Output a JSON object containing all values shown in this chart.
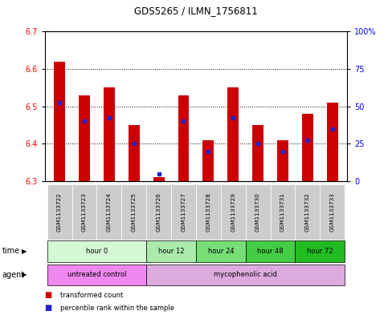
{
  "title": "GDS5265 / ILMN_1756811",
  "samples": [
    "GSM1133722",
    "GSM1133723",
    "GSM1133724",
    "GSM1133725",
    "GSM1133726",
    "GSM1133727",
    "GSM1133728",
    "GSM1133729",
    "GSM1133730",
    "GSM1133731",
    "GSM1133732",
    "GSM1133733"
  ],
  "bar_values": [
    6.62,
    6.53,
    6.55,
    6.45,
    6.31,
    6.53,
    6.41,
    6.55,
    6.45,
    6.41,
    6.48,
    6.51
  ],
  "bar_base": 6.3,
  "blue_dot_values": [
    6.51,
    6.46,
    6.47,
    6.4,
    6.32,
    6.46,
    6.38,
    6.47,
    6.4,
    6.38,
    6.41,
    6.44
  ],
  "bar_color": "#cc0000",
  "dot_color": "#2222cc",
  "ylim_left": [
    6.3,
    6.7
  ],
  "ylim_right": [
    0,
    100
  ],
  "yticks_left": [
    6.3,
    6.4,
    6.5,
    6.6,
    6.7
  ],
  "yticks_right": [
    0,
    25,
    50,
    75,
    100
  ],
  "ytick_labels_right": [
    "0",
    "25",
    "50",
    "75",
    "100%"
  ],
  "grid_lines": [
    6.4,
    6.5,
    6.6
  ],
  "time_groups": [
    {
      "label": "hour 0",
      "start": 0,
      "end": 3,
      "color": "#d4f7d4"
    },
    {
      "label": "hour 12",
      "start": 4,
      "end": 5,
      "color": "#aaeaaa"
    },
    {
      "label": "hour 24",
      "start": 6,
      "end": 7,
      "color": "#77dd77"
    },
    {
      "label": "hour 48",
      "start": 8,
      "end": 9,
      "color": "#44cc44"
    },
    {
      "label": "hour 72",
      "start": 10,
      "end": 11,
      "color": "#22bb22"
    }
  ],
  "agent_groups": [
    {
      "label": "untreated control",
      "start": 0,
      "end": 3,
      "color": "#ee88ee"
    },
    {
      "label": "mycophenolic acid",
      "start": 4,
      "end": 11,
      "color": "#ddaadd"
    }
  ],
  "sample_bg_color": "#cccccc",
  "legend_items": [
    {
      "label": "transformed count",
      "color": "#cc0000"
    },
    {
      "label": "percentile rank within the sample",
      "color": "#2222cc"
    }
  ],
  "time_row_label": "time",
  "agent_row_label": "agent"
}
